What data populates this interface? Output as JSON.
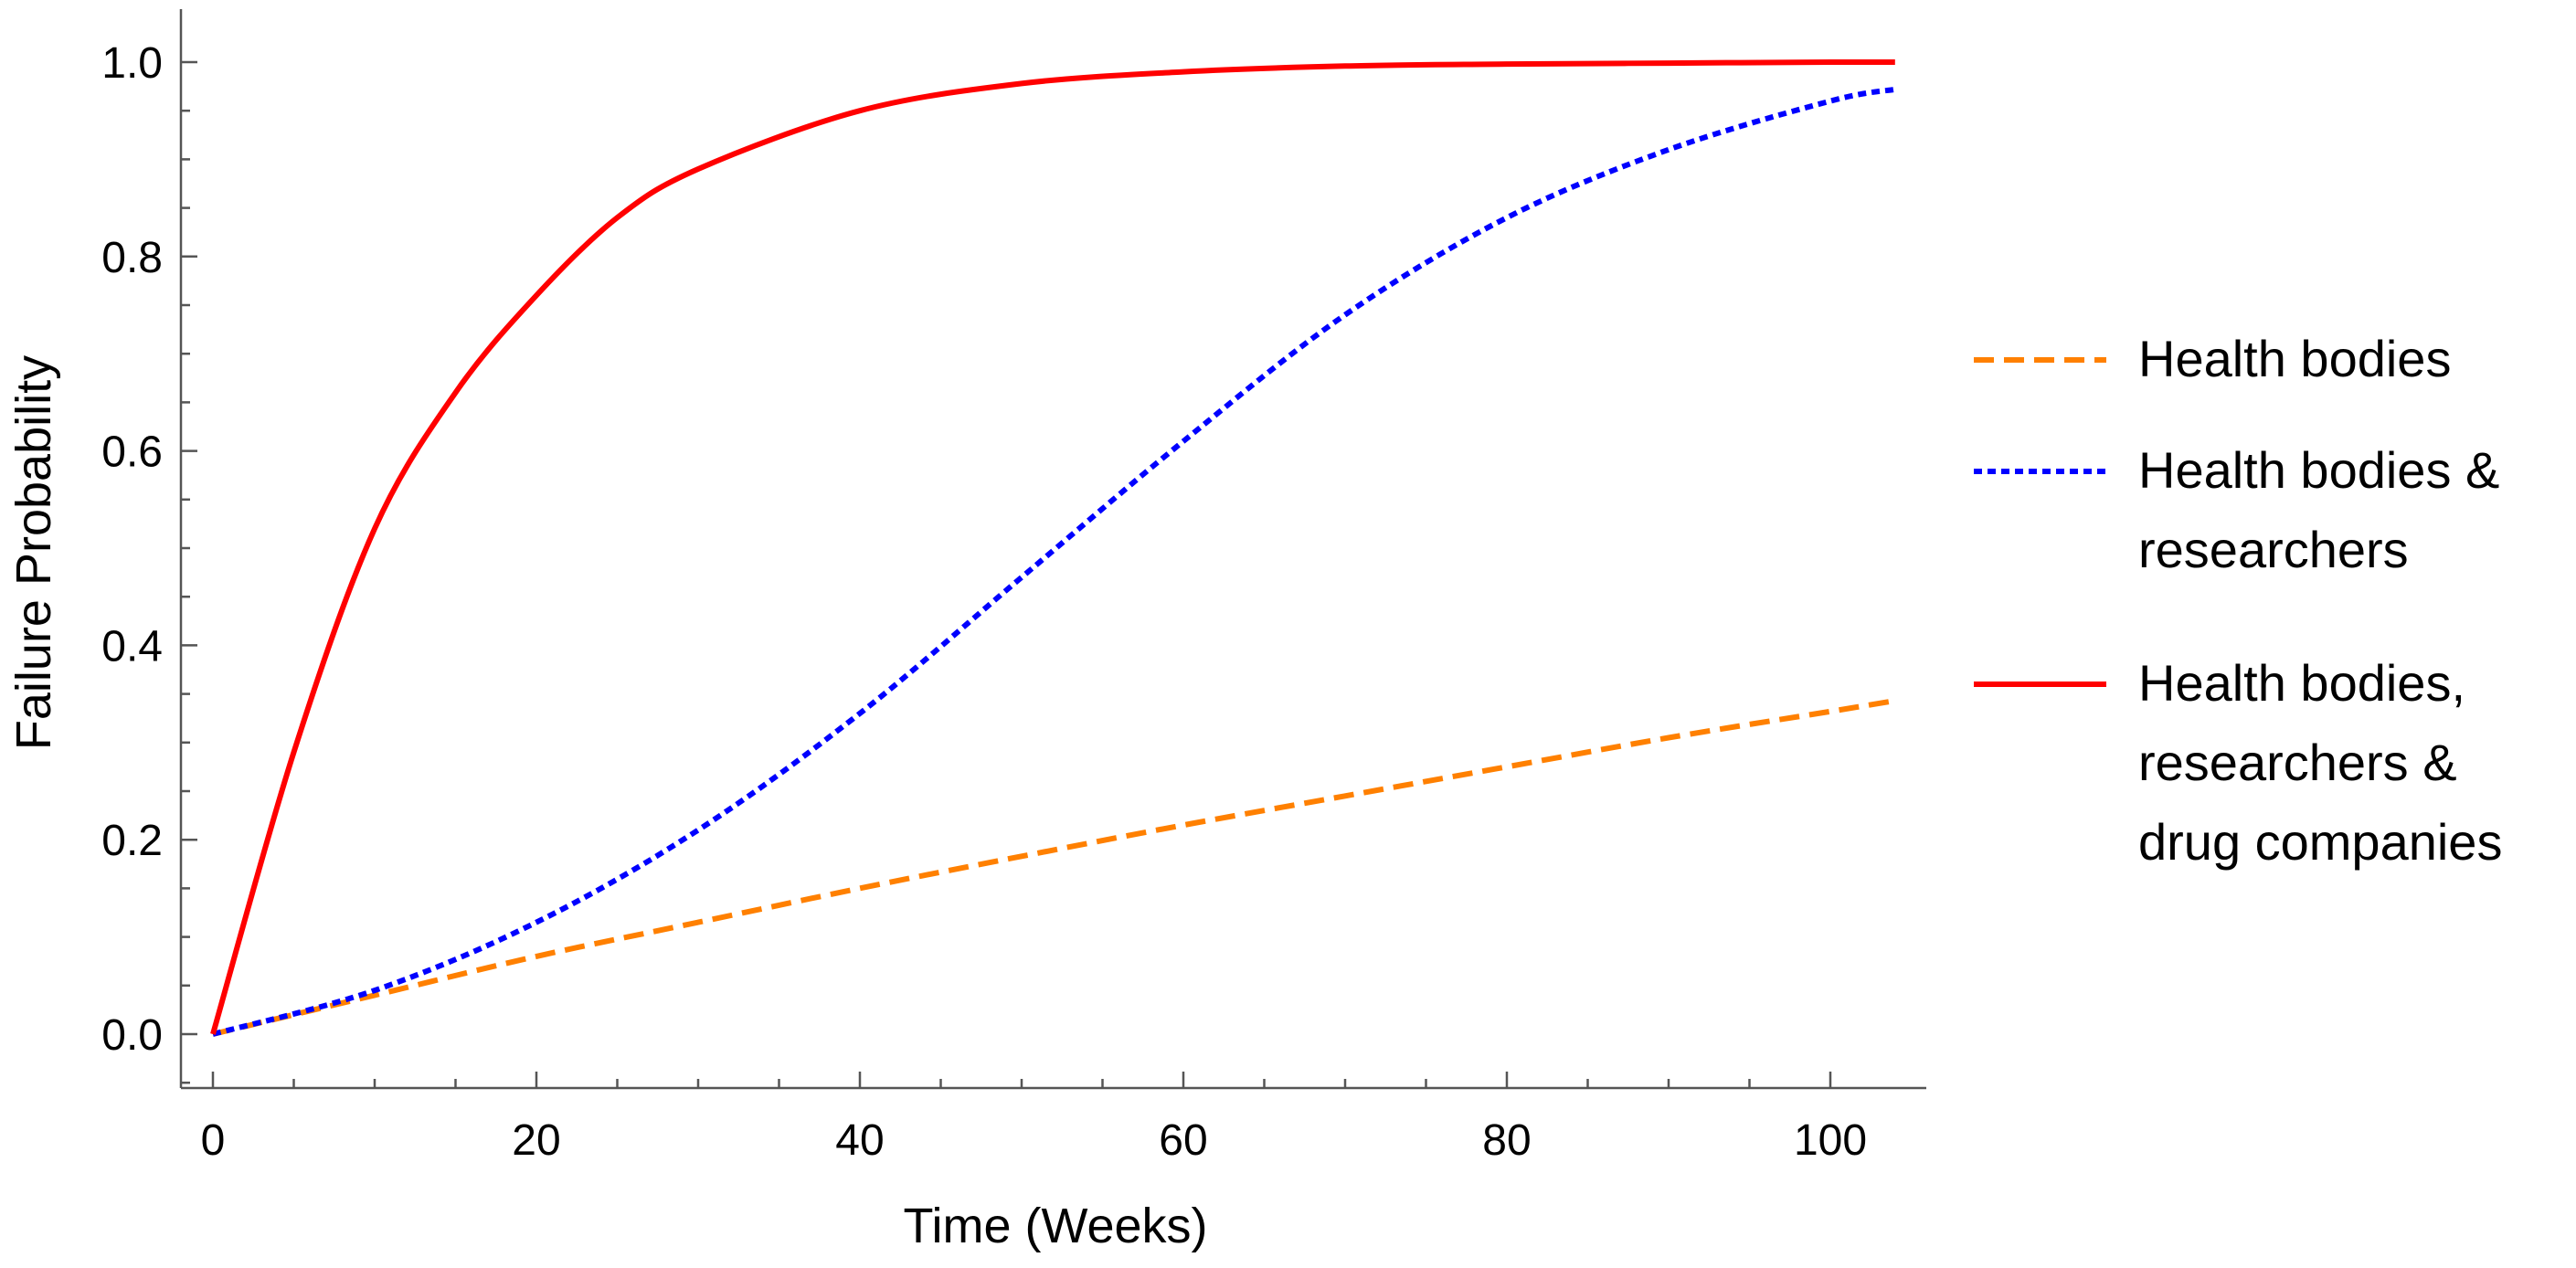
{
  "chart_data": {
    "type": "line",
    "title": "",
    "xlabel": "Time (Weeks)",
    "ylabel": "Failure Probability",
    "xlim": [
      0,
      104
    ],
    "ylim": [
      0,
      1.0
    ],
    "x_ticks": [
      0,
      20,
      40,
      60,
      80,
      100
    ],
    "x_tick_labels": [
      "0",
      "20",
      "40",
      "60",
      "80",
      "100"
    ],
    "y_ticks": [
      0,
      0.2,
      0.4,
      0.6,
      0.8,
      1.0
    ],
    "y_tick_labels": [
      "0.0",
      "0.2",
      "0.4",
      "0.6",
      "0.8",
      "1.0"
    ],
    "grid": false,
    "legend_position": "right",
    "series": [
      {
        "name": "Health bodies",
        "legend_lines": [
          "Health bodies"
        ],
        "color": "#ff8000",
        "style": "dashed",
        "x": [
          0,
          10,
          20,
          30,
          40,
          50,
          60,
          70,
          80,
          90,
          100,
          104
        ],
        "y": [
          0,
          0.04,
          0.08,
          0.115,
          0.15,
          0.183,
          0.215,
          0.245,
          0.275,
          0.305,
          0.332,
          0.343
        ]
      },
      {
        "name": "Health bodies & researchers",
        "legend_lines": [
          "Health bodies &",
          "researchers"
        ],
        "color": "#0000ff",
        "style": "dotted",
        "x": [
          0,
          10,
          20,
          30,
          40,
          50,
          60,
          70,
          80,
          90,
          100,
          104
        ],
        "y": [
          0,
          0.045,
          0.115,
          0.21,
          0.33,
          0.47,
          0.61,
          0.74,
          0.84,
          0.91,
          0.96,
          0.972
        ]
      },
      {
        "name": "Health bodies, researchers & drug companies",
        "legend_lines": [
          "Health bodies,",
          "researchers &",
          "drug companies"
        ],
        "color": "#ff0000",
        "style": "solid",
        "x": [
          0,
          5,
          10,
          15,
          20,
          25,
          30,
          40,
          50,
          60,
          70,
          80,
          90,
          100,
          104
        ],
        "y": [
          0,
          0.29,
          0.52,
          0.66,
          0.76,
          0.84,
          0.89,
          0.95,
          0.978,
          0.99,
          0.996,
          0.998,
          0.999,
          1.0,
          1.0
        ]
      }
    ]
  }
}
